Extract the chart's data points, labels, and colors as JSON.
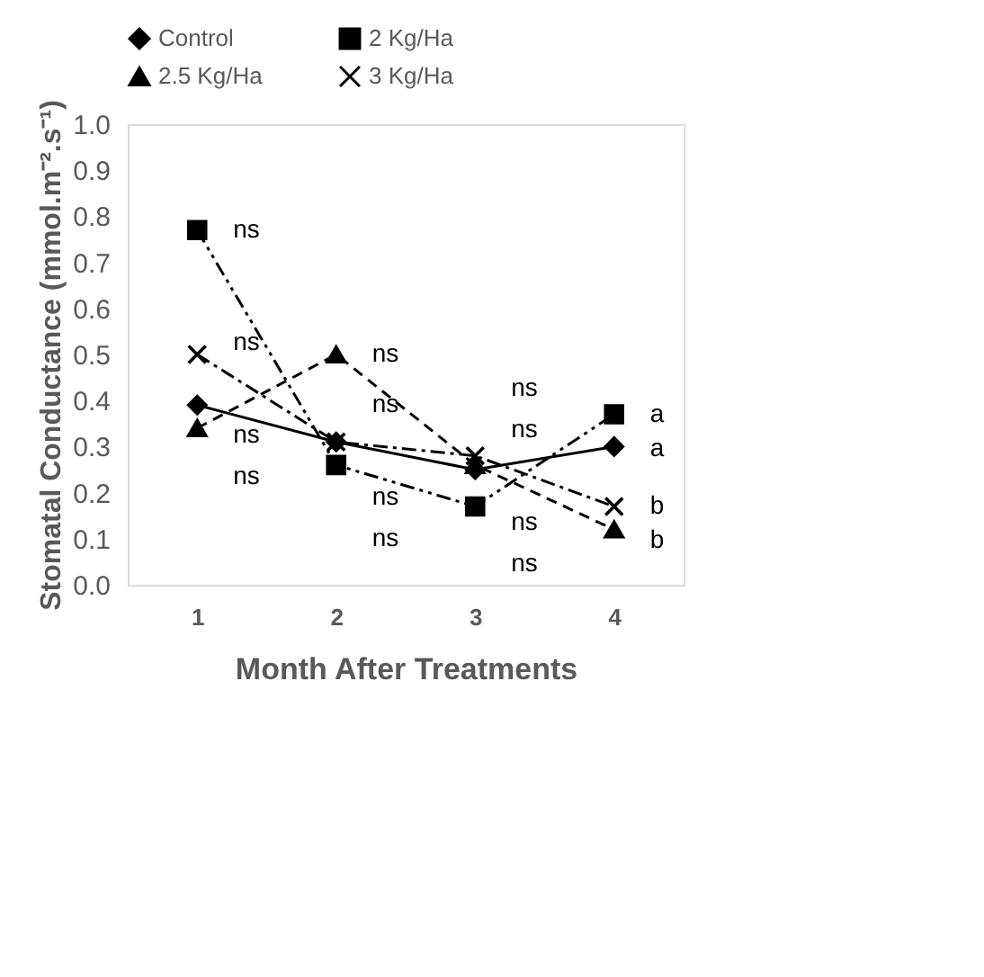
{
  "chart_data": {
    "type": "line",
    "xlabel": "Month After Treatments",
    "ylabel": "Stomatal Conductance (mmol.m⁻².s⁻¹)",
    "categories": [
      "1",
      "2",
      "3",
      "4"
    ],
    "ylim": [
      0,
      1
    ],
    "yticks": [
      {
        "value": 0,
        "label": "0.0"
      },
      0.1,
      0.2,
      0.3,
      0.4,
      0.5,
      0.6,
      0.7,
      0.8,
      0.9,
      {
        "value": 1,
        "label": "1.0"
      }
    ],
    "grid": false,
    "legend": "top",
    "series": [
      {
        "name": "Control",
        "color": "#000000",
        "marker": "diamond",
        "line_style": "solid",
        "values": [
          0.39,
          0.31,
          0.25,
          0.3
        ]
      },
      {
        "name": "2 Kg/Ha",
        "color": "#000000",
        "marker": "square",
        "line_style": "dashdotdot",
        "values": [
          0.77,
          0.26,
          0.17,
          0.37
        ]
      },
      {
        "name": "2.5 Kg/Ha",
        "color": "#000000",
        "marker": "triangle",
        "line_style": "dashed",
        "values": [
          0.34,
          0.5,
          0.26,
          0.12
        ]
      },
      {
        "name": "3 Kg/Ha",
        "color": "#000000",
        "marker": "cross",
        "line_style": "dashdot",
        "values": [
          0.5,
          0.31,
          0.28,
          0.17
        ]
      }
    ],
    "annotations": [
      {
        "text": "ns",
        "x": "1",
        "y": 0.77
      },
      {
        "text": "ns",
        "x": "1",
        "y": 0.5
      },
      {
        "text": "ns",
        "x": "1",
        "y": 0.39
      },
      {
        "text": "ns",
        "x": "1",
        "y": 0.34
      },
      {
        "text": "ns",
        "x": "2",
        "y": 0.5
      },
      {
        "text": "ns",
        "x": "2",
        "y": 0.31
      },
      {
        "text": "ns",
        "x": "2",
        "y": 0.31
      },
      {
        "text": "ns",
        "x": "2",
        "y": 0.26
      },
      {
        "text": "ns",
        "x": "3",
        "y": 0.28
      },
      {
        "text": "ns",
        "x": "3",
        "y": 0.26
      },
      {
        "text": "ns",
        "x": "3",
        "y": 0.25
      },
      {
        "text": "ns",
        "x": "3",
        "y": 0.17
      },
      {
        "text": "a",
        "x": "4",
        "y": 0.37
      },
      {
        "text": "a",
        "x": "4",
        "y": 0.3
      },
      {
        "text": "b",
        "x": "4",
        "y": 0.17
      },
      {
        "text": "b",
        "x": "4",
        "y": 0.12
      }
    ]
  }
}
